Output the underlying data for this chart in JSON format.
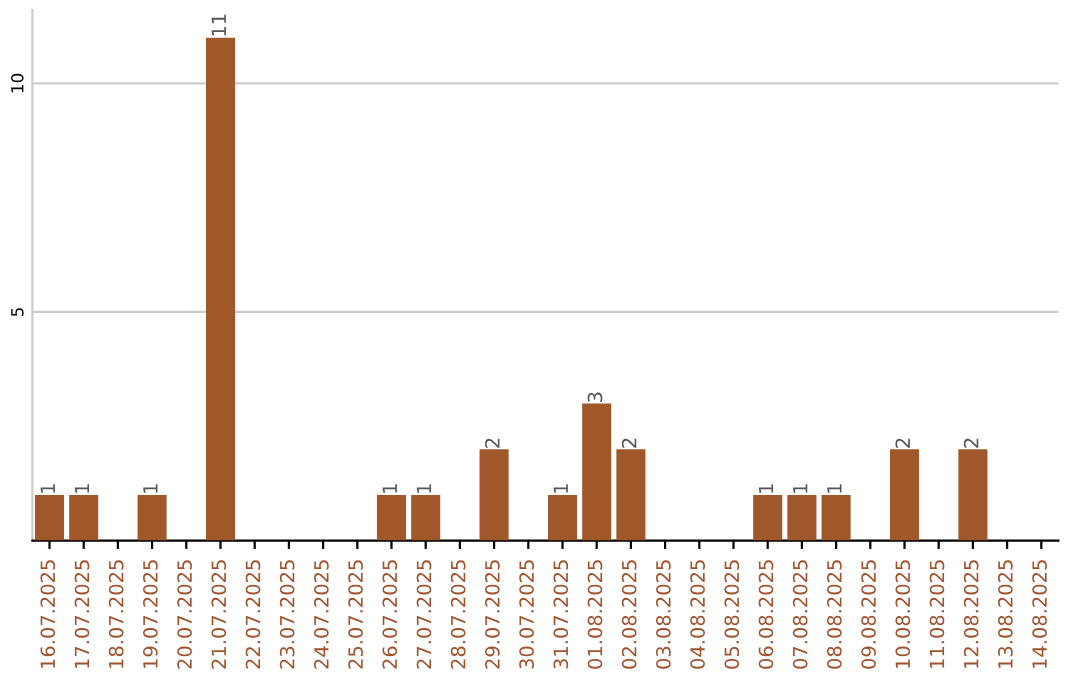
{
  "chart_data": {
    "type": "bar",
    "categories": [
      "16.07.2025",
      "17.07.2025",
      "18.07.2025",
      "19.07.2025",
      "20.07.2025",
      "21.07.2025",
      "22.07.2025",
      "23.07.2025",
      "24.07.2025",
      "25.07.2025",
      "26.07.2025",
      "27.07.2025",
      "28.07.2025",
      "29.07.2025",
      "30.07.2025",
      "31.07.2025",
      "01.08.2025",
      "02.08.2025",
      "03.08.2025",
      "04.08.2025",
      "05.08.2025",
      "06.08.2025",
      "07.08.2025",
      "08.08.2025",
      "09.08.2025",
      "10.08.2025",
      "11.08.2025",
      "12.08.2025",
      "13.08.2025",
      "14.08.2025"
    ],
    "values": [
      1,
      1,
      0,
      1,
      0,
      11,
      0,
      0,
      0,
      0,
      1,
      1,
      0,
      2,
      0,
      1,
      3,
      2,
      0,
      0,
      0,
      1,
      1,
      1,
      0,
      2,
      0,
      2,
      0,
      0
    ],
    "value_labels": [
      "1",
      "1",
      null,
      "1",
      null,
      "11",
      null,
      null,
      null,
      null,
      "1",
      "1",
      null,
      "2",
      null,
      "1",
      "3",
      "2",
      null,
      null,
      null,
      "1",
      "1",
      "1",
      null,
      "2",
      null,
      "2",
      null,
      null
    ],
    "color": "#a0572a",
    "ylim": [
      0,
      11.6
    ],
    "yticks": [
      5,
      10
    ],
    "grid": "y"
  }
}
